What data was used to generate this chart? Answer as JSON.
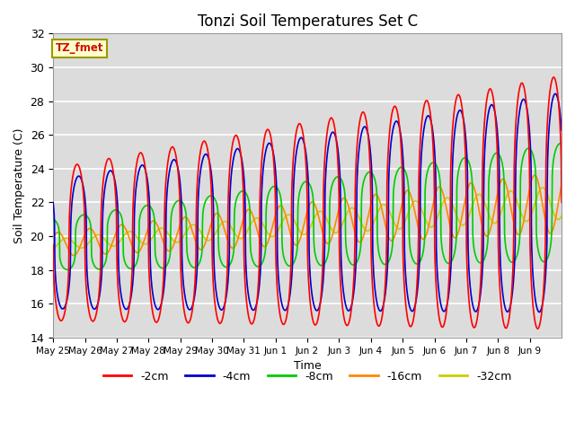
{
  "title": "Tonzi Soil Temperatures Set C",
  "xlabel": "Time",
  "ylabel": "Soil Temperature (C)",
  "ylim": [
    14,
    32
  ],
  "annotation": "TZ_fmet",
  "legend": [
    "-2cm",
    "-4cm",
    "-8cm",
    "-16cm",
    "-32cm"
  ],
  "line_colors": [
    "#ff0000",
    "#0000cc",
    "#00cc00",
    "#ff8800",
    "#cccc00"
  ],
  "background_color": "#dcdcdc",
  "grid_color": "#ffffff",
  "date_labels": [
    "May 25",
    "May 26",
    "May 27",
    "May 28",
    "May 29",
    "May 30",
    "May 31",
    "Jun 1",
    "Jun 2",
    "Jun 3",
    "Jun 4",
    "Jun 5",
    "Jun 6",
    "Jun 7",
    "Jun 8",
    "Jun 9"
  ],
  "n_days": 16
}
